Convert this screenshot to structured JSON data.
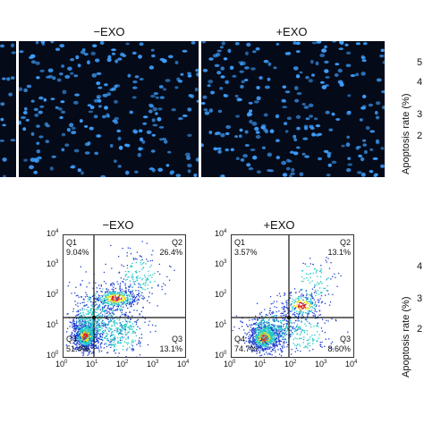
{
  "top_panel": {
    "columns": [
      {
        "label": "−EXO"
      },
      {
        "label": "+EXO"
      }
    ],
    "y_axis_title": "Apoptosis rate (%)",
    "y_ticks": [
      "5",
      "4",
      "3",
      "2"
    ]
  },
  "bottom_panel": {
    "y_axis_title": "Apoptosis rate (%)",
    "y_ticks": [
      "4",
      "3",
      "2"
    ],
    "flow_plots": [
      {
        "title": "−EXO",
        "quadrants": {
          "q1": {
            "name": "Q1",
            "value": "9.04%"
          },
          "q2": {
            "name": "Q2",
            "value": "26.4%"
          },
          "q3": {
            "name": "Q3",
            "value": "13.1%"
          },
          "q4": {
            "name": "Q4",
            "value": "51.4%"
          }
        }
      },
      {
        "title": "+EXO",
        "quadrants": {
          "q1": {
            "name": "Q1",
            "value": "3.57%"
          },
          "q2": {
            "name": "Q2",
            "value": "13.1%"
          },
          "q3": {
            "name": "Q3",
            "value": "8.60%"
          },
          "q4": {
            "name": "Q4",
            "value": "74.7%"
          }
        }
      }
    ],
    "axis_ticks": [
      "10",
      "10",
      "10",
      "10",
      "10"
    ],
    "axis_exponents": [
      "0",
      "1",
      "2",
      "3",
      "4"
    ]
  },
  "colors": {
    "nuclei": "#3fa0ff",
    "micro_bg": "#040a18",
    "density_low": "#1f3fd0",
    "density_mid": "#22c8c8",
    "density_high": "#e8e020",
    "density_peak": "#e02020"
  }
}
